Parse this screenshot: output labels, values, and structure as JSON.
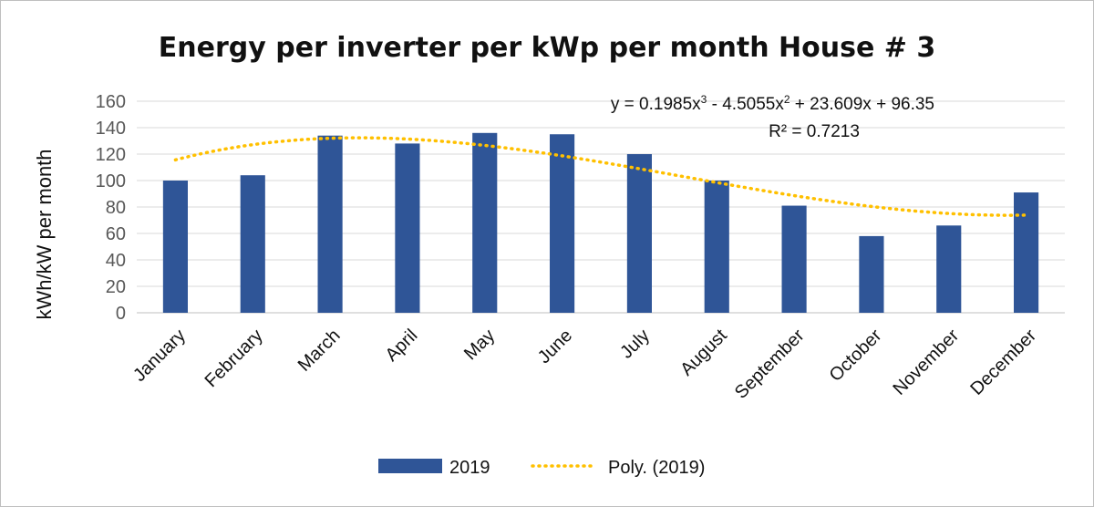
{
  "chart_data": {
    "type": "bar",
    "title": "Energy per inverter per kWp per month  House # 3",
    "xlabel": "",
    "ylabel": "kWh/kW per month",
    "ylim": [
      0,
      160
    ],
    "yticks": [
      0,
      20,
      40,
      60,
      80,
      100,
      120,
      140,
      160
    ],
    "grid": true,
    "legend_position": "bottom",
    "categories": [
      "January",
      "February",
      "March",
      "April",
      "May",
      "June",
      "July",
      "August",
      "September",
      "October",
      "November",
      "December"
    ],
    "series": [
      {
        "name": "2019",
        "type": "bar",
        "color": "#2f5597",
        "values": [
          100,
          104,
          134,
          128,
          136,
          135,
          120,
          100,
          81,
          58,
          66,
          91
        ]
      }
    ],
    "trendline": {
      "name": "Poly. (2019)",
      "color": "#ffc000",
      "style": "dotted",
      "coefficients": [
        0.1985,
        -4.5055,
        23.609,
        96.35
      ],
      "equation_prefix": "y = 0.1985x",
      "equation_parts": [
        "y = 0.1985x",
        "3",
        " - 4.5055x",
        "2",
        " + 23.609x + 96.35"
      ],
      "r_squared_label": "R² = 0.7213"
    }
  }
}
